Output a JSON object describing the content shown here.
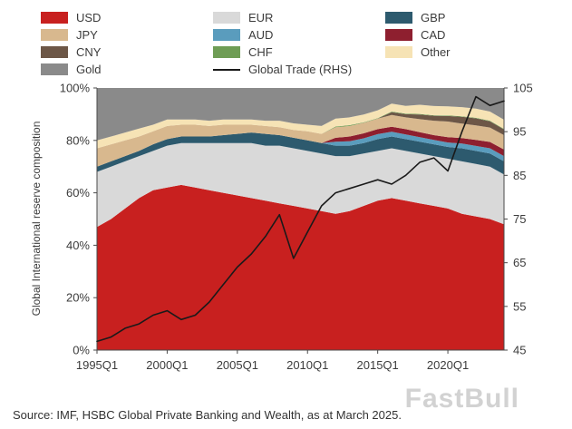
{
  "legend": {
    "columns": [
      {
        "items": [
          {
            "label": "USD",
            "color": "#c8201f",
            "glyph": "swatch"
          },
          {
            "label": "JPY",
            "color": "#d8b88e",
            "glyph": "swatch"
          },
          {
            "label": "CNY",
            "color": "#6d5747",
            "glyph": "swatch"
          },
          {
            "label": "Gold",
            "color": "#8a8a8a",
            "glyph": "swatch"
          }
        ]
      },
      {
        "items": [
          {
            "label": "EUR",
            "color": "#d9d9d9",
            "glyph": "swatch"
          },
          {
            "label": "AUD",
            "color": "#5a9cbd",
            "glyph": "swatch"
          },
          {
            "label": "CHF",
            "color": "#6f9d55",
            "glyph": "swatch"
          },
          {
            "label": "Global Trade (RHS)",
            "color": "#1a1a1a",
            "glyph": "line"
          }
        ]
      },
      {
        "items": [
          {
            "label": "GBP",
            "color": "#2d5a6e",
            "glyph": "swatch"
          },
          {
            "label": "CAD",
            "color": "#8e1f2f",
            "glyph": "swatch"
          },
          {
            "label": "Other",
            "color": "#f6e3b5",
            "glyph": "swatch"
          }
        ]
      }
    ]
  },
  "source": "Source: IMF, HSBC Global Private Banking and Wealth, as at March 2025.",
  "watermark": "FastBull",
  "chart_data": {
    "type": "area",
    "stacked": true,
    "title": "",
    "ylabel_left": "Global International reserve composition",
    "x": [
      1995,
      1996,
      1997,
      1998,
      1999,
      2000,
      2001,
      2002,
      2003,
      2004,
      2005,
      2006,
      2007,
      2008,
      2009,
      2010,
      2011,
      2012,
      2013,
      2014,
      2015,
      2016,
      2017,
      2018,
      2019,
      2020,
      2021,
      2022,
      2023,
      2024
    ],
    "x_tick_positions": [
      1995,
      2000,
      2005,
      2010,
      2015,
      2020
    ],
    "x_tick_labels": [
      "1995Q1",
      "2000Q1",
      "2005Q1",
      "2010Q1",
      "2015Q1",
      "2020Q1"
    ],
    "ylim_left": [
      0,
      100
    ],
    "yticks_left": {
      "values": [
        0,
        20,
        40,
        60,
        80,
        100
      ],
      "labels": [
        "0%",
        "20%",
        "40%",
        "60%",
        "80%",
        "100%"
      ]
    },
    "ylim_right": [
      45,
      105
    ],
    "yticks_right": {
      "values": [
        45,
        55,
        65,
        75,
        85,
        95,
        105
      ],
      "labels": [
        "45",
        "55",
        "65",
        "75",
        "85",
        "95",
        "105"
      ]
    },
    "series": [
      {
        "name": "USD",
        "color": "#c8201f",
        "values": [
          47,
          50,
          54,
          58,
          61,
          62,
          63,
          62,
          61,
          60,
          59,
          58,
          57,
          56,
          55,
          54,
          53,
          52,
          53,
          55,
          57,
          58,
          57,
          56,
          55,
          54,
          52,
          51,
          50,
          48
        ]
      },
      {
        "name": "EUR",
        "color": "#d9d9d9",
        "values": [
          21,
          20,
          18,
          16,
          15,
          16,
          16,
          17,
          18,
          19,
          20,
          21,
          21,
          22,
          22,
          22,
          22,
          22,
          21,
          20,
          19,
          19,
          19,
          19,
          19,
          19,
          20,
          20,
          20,
          19
        ]
      },
      {
        "name": "GBP",
        "color": "#2d5a6e",
        "values": [
          2,
          2,
          2,
          2,
          2.5,
          2.5,
          2.5,
          2.5,
          2.5,
          3,
          3.5,
          4,
          4.5,
          4,
          4,
          4,
          4,
          4,
          4,
          4,
          4.5,
          4.5,
          4.5,
          4.5,
          4.5,
          4.5,
          5,
          5,
          5,
          5
        ]
      },
      {
        "name": "AUD",
        "color": "#5a9cbd",
        "values": [
          0,
          0,
          0,
          0,
          0,
          0,
          0,
          0,
          0,
          0,
          0,
          0,
          0,
          0,
          0,
          0,
          0,
          1.5,
          1.7,
          1.8,
          1.9,
          1.8,
          1.8,
          1.7,
          1.7,
          1.7,
          1.8,
          1.9,
          2,
          2
        ]
      },
      {
        "name": "CAD",
        "color": "#8e1f2f",
        "values": [
          0,
          0,
          0,
          0,
          0,
          0,
          0,
          0,
          0,
          0,
          0,
          0,
          0,
          0,
          0,
          0,
          0,
          1.5,
          1.8,
          1.9,
          1.9,
          1.9,
          2,
          1.9,
          1.8,
          2,
          2.1,
          2.3,
          2.4,
          2.5
        ]
      },
      {
        "name": "JPY",
        "color": "#d8b88e",
        "values": [
          7,
          6.5,
          6,
          5.5,
          5,
          5,
          4.5,
          4.5,
          4,
          4,
          3.5,
          3,
          3,
          3,
          3,
          3.5,
          3.5,
          4,
          4,
          4,
          4,
          4.5,
          4.5,
          5,
          5.5,
          6,
          5.5,
          5.5,
          5.5,
          5.5
        ]
      },
      {
        "name": "CNY",
        "color": "#6d5747",
        "values": [
          0,
          0,
          0,
          0,
          0,
          0,
          0,
          0,
          0,
          0,
          0,
          0,
          0,
          0,
          0,
          0,
          0,
          0,
          0,
          0,
          0,
          1.1,
          1.2,
          1.8,
          1.9,
          2.1,
          2.6,
          2.7,
          2.4,
          2.2
        ]
      },
      {
        "name": "CHF",
        "color": "#6f9d55",
        "values": [
          0,
          0,
          0,
          0,
          0,
          0,
          0,
          0,
          0,
          0,
          0,
          0,
          0,
          0,
          0,
          0,
          0,
          0.3,
          0.3,
          0.2,
          0.2,
          0.2,
          0.2,
          0.2,
          0.2,
          0.2,
          0.2,
          0.2,
          0.2,
          0.2
        ]
      },
      {
        "name": "Other",
        "color": "#f6e3b5",
        "values": [
          3,
          3,
          3,
          3,
          2.5,
          2.5,
          2,
          2,
          2,
          2,
          2,
          2,
          2,
          2.5,
          2.5,
          2.5,
          3,
          3,
          3,
          3,
          3,
          3,
          3,
          3.5,
          3.5,
          3.5,
          3.5,
          3.5,
          3.5,
          3.5
        ]
      },
      {
        "name": "Gold",
        "color": "#8a8a8a",
        "values": [
          20,
          18.5,
          17,
          15.5,
          14,
          12,
          12,
          12,
          12.5,
          12,
          12,
          12,
          12.5,
          12.5,
          13.5,
          14,
          14.5,
          11.7,
          11.2,
          10.1,
          8.5,
          6,
          6.8,
          6.4,
          6.9,
          7,
          7.3,
          7.9,
          9,
          12.1
        ]
      }
    ],
    "line_series": {
      "name": "Global Trade (RHS)",
      "axis": "right",
      "color": "#1a1a1a",
      "values": [
        47,
        48,
        50,
        51,
        53,
        54,
        52,
        53,
        56,
        60,
        64,
        67,
        71,
        76,
        66,
        72,
        78,
        81,
        82,
        83,
        84,
        83,
        85,
        88,
        89,
        86,
        95,
        103,
        101,
        102
      ]
    }
  }
}
